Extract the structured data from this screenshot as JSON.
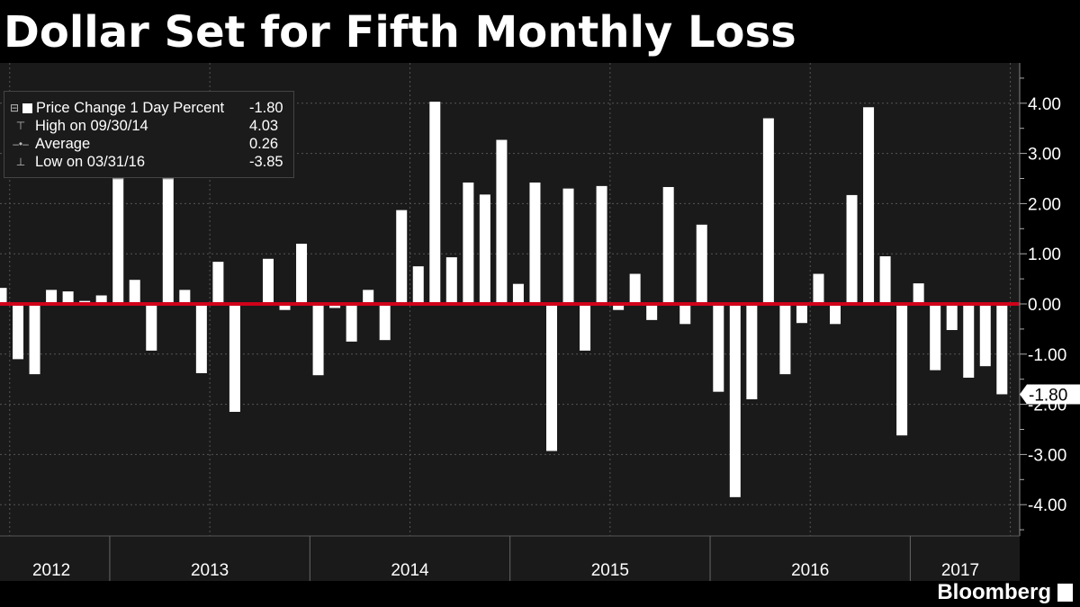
{
  "title": "Dollar Set for Fifth Monthly Loss",
  "brand": "Bloomberg",
  "legend": {
    "series_label": "Price Change 1 Day Percent",
    "series_value": "-1.80",
    "high_label": "High on 09/30/14",
    "high_value": "4.03",
    "avg_label": "Average",
    "avg_value": "0.26",
    "low_label": "Low on 03/31/16",
    "low_value": "-3.85"
  },
  "colors": {
    "background": "#1a1a1a",
    "bars": "#ffffff",
    "zero_line": "#d0021b",
    "grid": "#555555",
    "marker": "#8c8c8c"
  },
  "chart_data": {
    "type": "bar",
    "title": "Dollar Set for Fifth Monthly Loss",
    "xlabel": "",
    "ylabel": "",
    "ylim": [
      -4.6,
      4.75
    ],
    "y_ticks": [
      "4.00",
      "3.00",
      "2.00",
      "1.00",
      "0.00",
      "-1.00",
      "-2.00",
      "-3.00",
      "-4.00"
    ],
    "y_tick_values": [
      4,
      3,
      2,
      1,
      0,
      -1,
      -2,
      -3,
      -4
    ],
    "years": [
      "2012",
      "2013",
      "2014",
      "2015",
      "2016",
      "2017"
    ],
    "start": "2012-06",
    "end": "2017-07",
    "series": [
      {
        "name": "Price Change 1 Day Percent",
        "values": [
          0.32,
          -1.1,
          -1.4,
          0.28,
          0.25,
          0.06,
          0.17,
          2.7,
          0.48,
          -0.93,
          2.7,
          0.28,
          -1.38,
          0.84,
          -2.15,
          0.0,
          0.9,
          -0.12,
          1.2,
          -1.42,
          -0.08,
          -0.75,
          0.28,
          -0.72,
          1.87,
          0.75,
          4.03,
          0.93,
          2.42,
          2.18,
          3.27,
          0.4,
          2.42,
          -2.93,
          2.3,
          -0.93,
          2.35,
          -0.12,
          0.6,
          -0.32,
          2.33,
          -0.4,
          1.58,
          -1.75,
          -3.85,
          -1.9,
          3.7,
          -1.4,
          -0.38,
          0.6,
          -0.4,
          2.17,
          3.92,
          0.95,
          -2.62,
          0.41,
          -1.32,
          -0.52,
          -1.47,
          -1.24,
          -1.8
        ]
      }
    ],
    "capped_marker_values": [
      "2.7",
      "2.7"
    ],
    "last_value_label": "-1.80",
    "grid": true,
    "legend_position": "top-left"
  }
}
